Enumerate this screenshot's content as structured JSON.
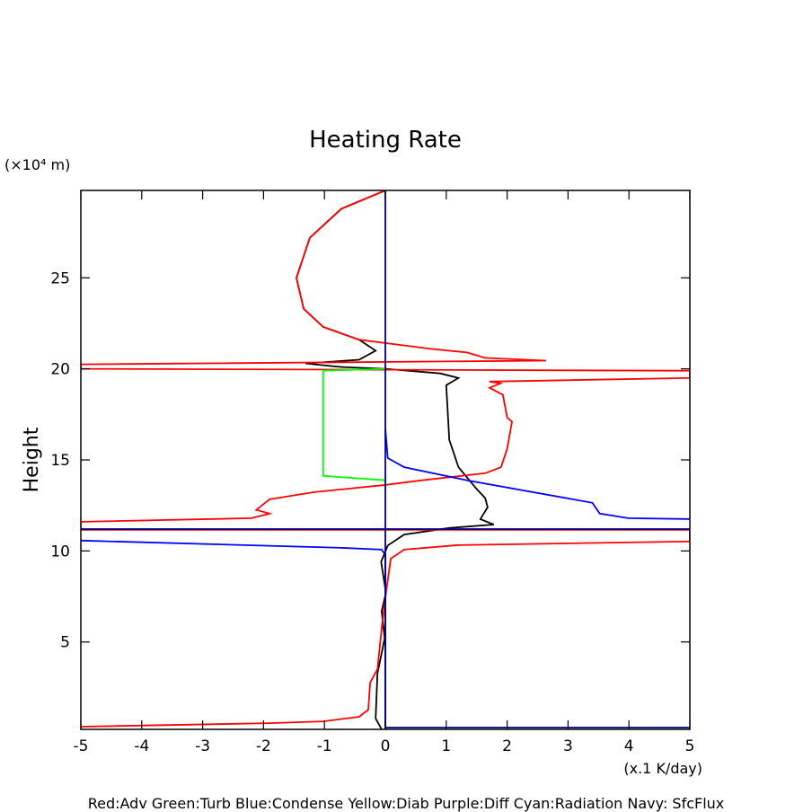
{
  "chart_data": {
    "type": "line",
    "title": "Heating Rate",
    "y_label": "Height",
    "y_unit": "(×10⁴ m)",
    "x_unit": "(x.1 K/day)",
    "note": "Red:Adv  Green:Turb  Blue:Condense  Yellow:Diab  Purple:Diff  Cyan:Radiation  Navy: SfcFlux",
    "xlim": [
      -5,
      5
    ],
    "ylim": [
      0.2,
      29.8
    ],
    "xticks": [
      -5,
      -4,
      -3,
      -2,
      -1,
      0,
      1,
      2,
      3,
      4,
      5
    ],
    "yticks": [
      5,
      10,
      15,
      20,
      25
    ],
    "series": [
      {
        "color": "#000000",
        "x": [
          0,
          -0.72,
          -1.24,
          -1.46,
          -1.34,
          -1.02,
          -0.43,
          -0.16,
          -0.43,
          -1.31,
          -0.72,
          0,
          0.9,
          1.2,
          1.0,
          1.05,
          1.2,
          1.5,
          1.64,
          1.68,
          1.56,
          1.78,
          1.05,
          0.31,
          0.04,
          -0.07,
          0.01,
          -0.06,
          -0.01,
          -0.13,
          -0.16,
          -0.06
        ],
        "y": [
          29.8,
          28.8,
          27.2,
          25,
          23.3,
          22.3,
          21.6,
          21.0,
          20.5,
          20.3,
          20.1,
          20,
          19.75,
          19.5,
          19.1,
          16.1,
          14.6,
          13.4,
          12.9,
          12.4,
          11.75,
          11.45,
          11.26,
          10.9,
          10.3,
          9.4,
          7.7,
          6.7,
          5.2,
          3.26,
          0.8,
          0.2
        ]
      },
      {
        "color": "#ff0000",
        "x": [
          0,
          -0.72,
          -1.24,
          -1.46,
          -1.34,
          -1.02,
          -0.43,
          0.75,
          1.34,
          1.64,
          2.64,
          -5,
          -5,
          5,
          5,
          1.71,
          1.89,
          1.71,
          1.93,
          2.0,
          2.08,
          2.0,
          1.9,
          1.64,
          0.6,
          0.01,
          -1.17,
          -1.9,
          -2.12,
          -1.9,
          -2.2,
          -5,
          -5,
          5,
          5,
          1.19,
          0.31,
          0.09,
          0.01,
          -0.06,
          -0.13,
          -0.25,
          -0.28,
          -0.43,
          -1.02,
          -1.9,
          -5
        ],
        "y": [
          29.8,
          28.8,
          27.2,
          25,
          23.3,
          22.3,
          21.6,
          21.1,
          20.9,
          20.6,
          20.45,
          20.25,
          20.0,
          19.9,
          19.5,
          19.3,
          19.2,
          18.96,
          18.57,
          17.33,
          17.09,
          15.6,
          14.6,
          14.27,
          13.88,
          13.63,
          13.23,
          12.84,
          12.25,
          12.05,
          11.8,
          11.6,
          11.16,
          11.16,
          10.52,
          10.32,
          10.07,
          9.58,
          7.7,
          5.73,
          3.5,
          2.77,
          1.28,
          0.89,
          0.64,
          0.54,
          0.35
        ]
      },
      {
        "color": "#00ff00",
        "x": [
          0,
          -1.02,
          -1.02,
          0
        ],
        "y": [
          20.0,
          19.9,
          14.12,
          13.88
        ]
      },
      {
        "color": "#0000ff",
        "x": [
          0,
          0.04,
          0.31,
          1.34,
          3.4,
          3.52,
          3.99,
          5,
          null,
          -5,
          -0.72,
          -0.06,
          0,
          0
        ],
        "y": [
          16.7,
          15.1,
          14.6,
          13.88,
          12.64,
          12.05,
          11.8,
          11.75,
          null,
          10.57,
          10.17,
          10.07,
          9.78,
          0.2
        ]
      },
      {
        "color": "#000080",
        "x": [
          0,
          0,
          null,
          -5,
          5,
          null,
          0,
          5
        ],
        "y": [
          29.8,
          0.2,
          null,
          11.2,
          11.2,
          null,
          0.3,
          0.3
        ]
      }
    ]
  }
}
